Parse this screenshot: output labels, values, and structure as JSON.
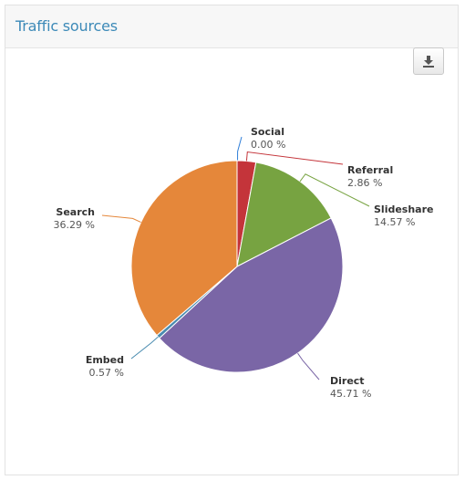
{
  "panel": {
    "title": "Traffic sources"
  },
  "toolbar": {
    "download_icon": "download-icon"
  },
  "colors": {
    "title": "#3d8ab8",
    "Social": "#2f7ed8",
    "Referral": "#c4343a",
    "Slideshare": "#77a341",
    "Direct": "#7a66a6",
    "Embed": "#4a8cb0",
    "Search": "#e5873a"
  },
  "chart_data": {
    "type": "pie",
    "title": "Traffic sources",
    "slices": [
      {
        "name": "Social",
        "value": 0.0,
        "label": "0.00 %"
      },
      {
        "name": "Referral",
        "value": 2.86,
        "label": "2.86 %"
      },
      {
        "name": "Slideshare",
        "value": 14.57,
        "label": "14.57 %"
      },
      {
        "name": "Direct",
        "value": 45.71,
        "label": "45.71 %"
      },
      {
        "name": "Embed",
        "value": 0.57,
        "label": "0.57 %"
      },
      {
        "name": "Search",
        "value": 36.29,
        "label": "36.29 %"
      }
    ],
    "legend": "none",
    "data_labels": "outside"
  }
}
